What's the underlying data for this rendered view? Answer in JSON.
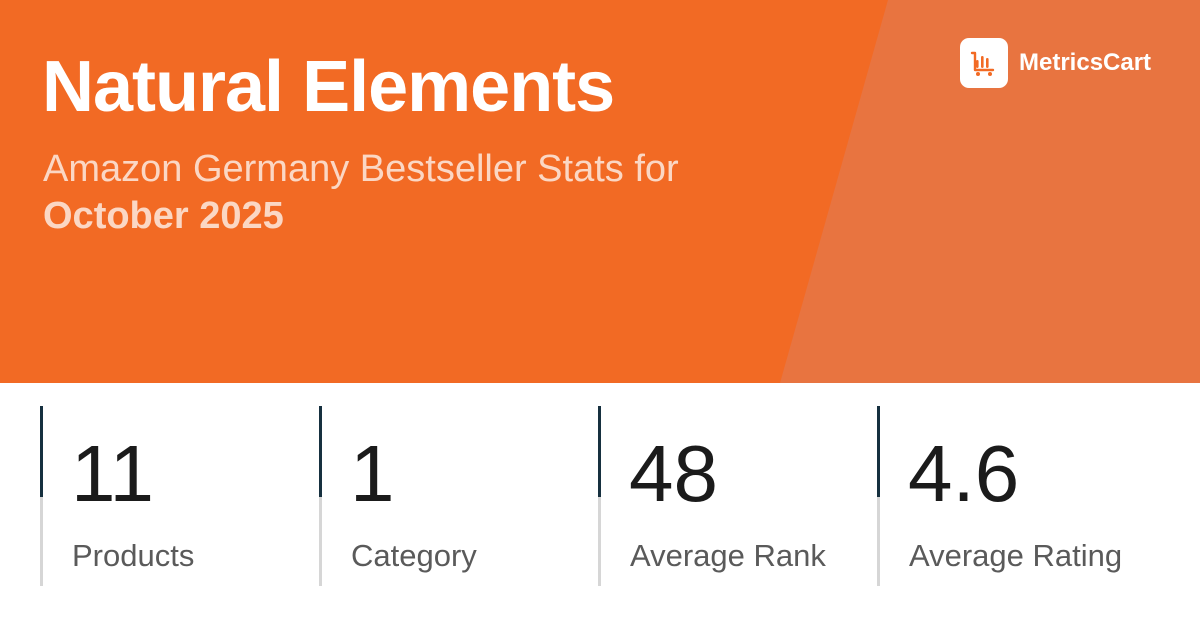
{
  "header": {
    "title": "Natural Elements",
    "subtitle": "Amazon Germany Bestseller Stats for",
    "period": "October 2025"
  },
  "brand": {
    "name": "MetricsCart",
    "logo_icon": "bar-chart-cart-icon"
  },
  "colors": {
    "primary_orange": "#f26a24",
    "accent_orange": "#e87440",
    "dark_bar": "#16303f",
    "light_bar": "#d6d6d6"
  },
  "stats": [
    {
      "value": "11",
      "label": "Products"
    },
    {
      "value": "1",
      "label": "Category"
    },
    {
      "value": "48",
      "label": "Average Rank"
    },
    {
      "value": "4.6",
      "label": "Average Rating"
    }
  ]
}
